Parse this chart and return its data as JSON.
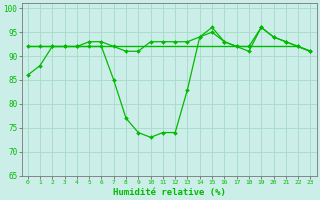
{
  "title": "",
  "xlabel": "Humidité relative (%)",
  "ylabel": "",
  "xlim": [
    -0.5,
    23.5
  ],
  "ylim": [
    65,
    101
  ],
  "yticks": [
    65,
    70,
    75,
    80,
    85,
    90,
    95,
    100
  ],
  "xticks": [
    0,
    1,
    2,
    3,
    4,
    5,
    6,
    7,
    8,
    9,
    10,
    11,
    12,
    13,
    14,
    15,
    16,
    17,
    18,
    19,
    20,
    21,
    22,
    23
  ],
  "background_color": "#cceee8",
  "grid_color": "#aaddcc",
  "line_color": "#00bb00",
  "line1": [
    86,
    88,
    92,
    92,
    92,
    92,
    92,
    85,
    77,
    74,
    73,
    74,
    74,
    83,
    94,
    96,
    93,
    92,
    92,
    96,
    94,
    93,
    92,
    91
  ],
  "line2": [
    92,
    92,
    92,
    92,
    92,
    93,
    93,
    92,
    91,
    91,
    93,
    93,
    93,
    93,
    94,
    95,
    93,
    92,
    91,
    96,
    94,
    93,
    92,
    91
  ],
  "line3": [
    92,
    92,
    92,
    92,
    92,
    92,
    92,
    92,
    92,
    92,
    92,
    92,
    92,
    92,
    92,
    92,
    92,
    92,
    92,
    92,
    92,
    92,
    92,
    91
  ]
}
